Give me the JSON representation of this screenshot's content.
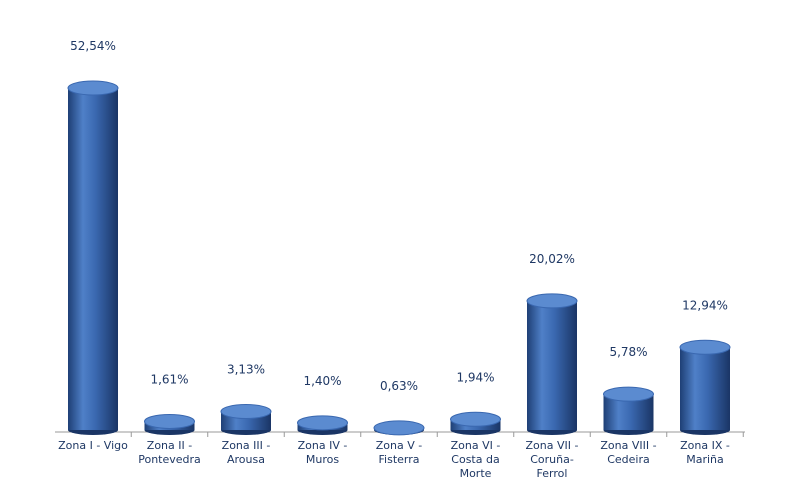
{
  "chart_data": {
    "type": "bar",
    "categories": [
      "Zona I - Vigo",
      "Zona II - Pontevedra",
      "Zona III - Arousa",
      "Zona IV - Muros",
      "Zona V - Fisterra",
      "Zona VI - Costa da Morte",
      "Zona VII - Coruña-Ferrol",
      "Zona VIII - Cedeira",
      "Zona IX - Mariña"
    ],
    "values": [
      52.54,
      1.61,
      3.13,
      1.4,
      0.63,
      1.94,
      20.02,
      5.78,
      12.94
    ],
    "value_labels": [
      "52,54%",
      "1,61%",
      "3,13%",
      "1,40%",
      "0,63%",
      "1,94%",
      "20,02%",
      "5,78%",
      "12,94%"
    ],
    "color": "#3a68b0"
  }
}
